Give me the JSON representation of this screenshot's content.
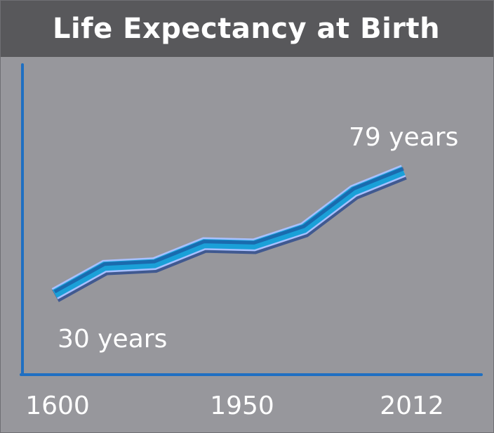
{
  "title": "Life Expectancy at Birth",
  "colors": {
    "background": "#97979c",
    "header": "#58585b",
    "axis": "#1f6fc2",
    "band_fill": "#1aa0d8",
    "band_edge": "#a8c0ff",
    "band_shadow": "#1b3f8c",
    "text": "#ffffff"
  },
  "chart_data": {
    "type": "line",
    "title": "Life Expectancy at Birth",
    "xlabel": "",
    "ylabel": "",
    "x_tick_labels": [
      "1600",
      "1950",
      "2012"
    ],
    "y_axis_tick_labels": false,
    "grid": false,
    "legend": "none",
    "series": [
      {
        "values": [
          {
            "x": "1600",
            "y": 30
          },
          {
            "x": "",
            "y": 41
          },
          {
            "x": "",
            "y": 42
          },
          {
            "x": "",
            "y": 50
          },
          {
            "x": "1950",
            "y": 49.5
          },
          {
            "x": "",
            "y": 56
          },
          {
            "x": "",
            "y": 71
          },
          {
            "x": "2012",
            "y": 79
          }
        ]
      }
    ],
    "annotations": [
      {
        "text": "30 years",
        "attached_to": "first point"
      },
      {
        "text": "79 years",
        "attached_to": "last point"
      }
    ]
  }
}
